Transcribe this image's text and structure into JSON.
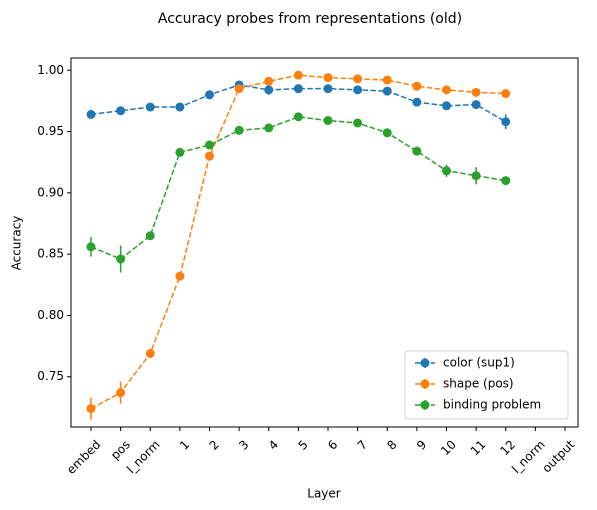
{
  "chart_data": {
    "type": "line",
    "title": "Accuracy probes from representations (old)",
    "xlabel": "Layer",
    "ylabel": "Accuracy",
    "categories": [
      "embed",
      "pos",
      "l_norm",
      "1",
      "2",
      "3",
      "4",
      "5",
      "6",
      "7",
      "8",
      "9",
      "10",
      "11",
      "12",
      "l_norm",
      "output"
    ],
    "ylim": [
      0.709,
      1.01
    ],
    "yticks": [
      0.75,
      {
        "value": 0.8,
        "label": "0.80"
      },
      0.85,
      {
        "value": 0.9,
        "label": "0.90"
      },
      0.95,
      {
        "value": 1,
        "label": "1.00"
      }
    ],
    "legend": "lower right",
    "series": [
      {
        "name": "color (sup1)",
        "color": "#1f77b4",
        "values": [
          0.964,
          0.967,
          0.97,
          0.97,
          0.98,
          0.988,
          0.984,
          0.985,
          0.985,
          0.984,
          0.983,
          0.974,
          0.971,
          0.972,
          0.958,
          null,
          null
        ],
        "errors": [
          0.002,
          0.002,
          0.002,
          0.002,
          0.002,
          0.002,
          0.004,
          0.003,
          0.002,
          0.002,
          0.002,
          0.002,
          0.003,
          0.003,
          0.006,
          null,
          null
        ]
      },
      {
        "name": "shape (pos)",
        "color": "#ff7f0e",
        "values": [
          0.724,
          0.737,
          0.769,
          0.832,
          0.93,
          0.985,
          0.991,
          0.996,
          0.994,
          0.993,
          0.992,
          0.987,
          0.984,
          0.982,
          0.981,
          null,
          null
        ],
        "errors": [
          0.009,
          0.009,
          0.002,
          0.003,
          0.002,
          0.003,
          0.002,
          0.002,
          0.002,
          0.002,
          0.002,
          0.002,
          0.002,
          0.002,
          0.002,
          null,
          null
        ]
      },
      {
        "name": "binding problem",
        "color": "#2ca02c",
        "values": [
          0.856,
          0.846,
          0.865,
          0.933,
          0.939,
          0.951,
          0.953,
          0.962,
          0.959,
          0.957,
          0.949,
          0.934,
          0.918,
          0.914,
          0.91,
          null,
          null
        ],
        "errors": [
          0.008,
          0.011,
          0.003,
          0.003,
          0.003,
          0.003,
          0.003,
          0.003,
          0.003,
          0.003,
          0.003,
          0.003,
          0.005,
          0.007,
          0.003,
          null,
          null
        ]
      }
    ]
  }
}
